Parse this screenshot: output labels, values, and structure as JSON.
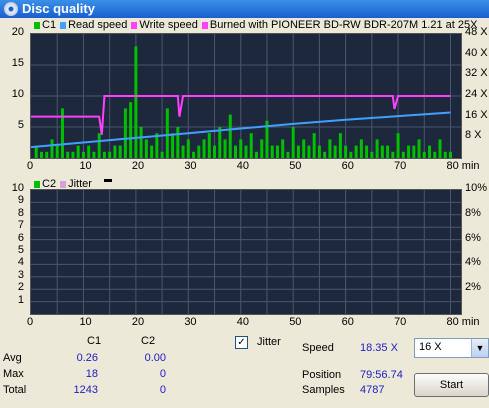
{
  "window": {
    "title": "Disc quality"
  },
  "top_legend": {
    "c1": "C1",
    "read": "Read speed",
    "write": "Write speed",
    "burned": "Burned with PIONEER BD-RW   BDR-207M 1.21 at 25X"
  },
  "top_chart": {
    "y_ticks": [
      "20",
      "15",
      "10",
      "5"
    ],
    "y2_ticks": [
      "48 X",
      "40 X",
      "32 X",
      "24 X",
      "16 X",
      "8 X"
    ],
    "x_ticks": [
      "0",
      "10",
      "20",
      "30",
      "40",
      "50",
      "60",
      "70",
      "80 min"
    ]
  },
  "bottom_legend": {
    "c2": "C2",
    "jitter": "Jitter"
  },
  "bottom_chart": {
    "y_ticks": [
      "10",
      "9",
      "8",
      "7",
      "6",
      "5",
      "4",
      "3",
      "2",
      "1"
    ],
    "y2_ticks": [
      "10%",
      "8%",
      "6%",
      "4%",
      "2%"
    ],
    "x_ticks": [
      "0",
      "10",
      "20",
      "30",
      "40",
      "50",
      "60",
      "70",
      "80 min"
    ]
  },
  "stats": {
    "headers": {
      "c1": "C1",
      "c2": "C2"
    },
    "rows": [
      {
        "label": "Avg",
        "c1": "0.26",
        "c2": "0.00"
      },
      {
        "label": "Max",
        "c1": "18",
        "c2": "0"
      },
      {
        "label": "Total",
        "c1": "1243",
        "c2": "0"
      }
    ]
  },
  "jitter": {
    "label": "Jitter",
    "checked": true,
    "mark": "✓"
  },
  "info": {
    "speed_label": "Speed",
    "speed_value": "18.35 X",
    "position_label": "Position",
    "position_value": "79:56.74",
    "samples_label": "Samples",
    "samples_value": "4787"
  },
  "speed_select": {
    "value": "16 X",
    "arrow": "▼"
  },
  "start_button": {
    "label": "Start"
  },
  "colors": {
    "c1": "#00c000",
    "read": "#40a0ff",
    "write": "#ff40ff",
    "jitter": "#d8a0d8",
    "plot_bg": "#1e283c"
  },
  "chart_data": [
    {
      "type": "bar",
      "title": "",
      "xlabel": "min",
      "ylabel": "",
      "xlim": [
        0,
        82
      ],
      "ylim": [
        0,
        20
      ],
      "y2lim": [
        0,
        48
      ],
      "series": [
        {
          "name": "C1",
          "kind": "bar",
          "x": [
            1,
            2,
            3,
            4,
            5,
            6,
            7,
            8,
            9,
            10,
            11,
            12,
            13,
            14,
            15,
            16,
            17,
            18,
            19,
            20,
            21,
            22,
            23,
            24,
            25,
            26,
            27,
            28,
            29,
            30,
            31,
            32,
            33,
            34,
            35,
            36,
            37,
            38,
            39,
            40,
            41,
            42,
            43,
            44,
            45,
            46,
            47,
            48,
            49,
            50,
            51,
            52,
            53,
            54,
            55,
            56,
            57,
            58,
            59,
            60,
            61,
            62,
            63,
            64,
            65,
            66,
            67,
            68,
            69,
            70,
            71,
            72,
            73,
            74,
            75,
            76,
            77,
            78,
            79,
            80
          ],
          "values": [
            2,
            1,
            1,
            3,
            2,
            8,
            1,
            1,
            2,
            1,
            2,
            1,
            4,
            1,
            1,
            2,
            2,
            8,
            9,
            18,
            5,
            3,
            2,
            4,
            1,
            8,
            4,
            5,
            2,
            3,
            1,
            2,
            3,
            4,
            2,
            5,
            3,
            7,
            2,
            3,
            2,
            4,
            1,
            3,
            6,
            2,
            2,
            3,
            1,
            5,
            2,
            3,
            2,
            4,
            2,
            1,
            3,
            2,
            4,
            2,
            1,
            2,
            3,
            2,
            1,
            3,
            2,
            2,
            1,
            4,
            1,
            2,
            2,
            3,
            1,
            2,
            1,
            3,
            1,
            1
          ]
        },
        {
          "name": "Read speed",
          "kind": "line",
          "axis": "right",
          "x": [
            0,
            10,
            20,
            30,
            40,
            50,
            60,
            70,
            80
          ],
          "values": [
            4.2,
            6,
            7.8,
            9.6,
            11.4,
            13.2,
            14.8,
            16.2,
            17.6
          ]
        },
        {
          "name": "Write speed",
          "kind": "line",
          "axis": "right",
          "x": [
            0,
            13,
            13.5,
            14,
            28,
            28.3,
            29,
            69,
            69.3,
            70,
            80
          ],
          "values": [
            16,
            16,
            9,
            24,
            24,
            16,
            24,
            24,
            19,
            24,
            24
          ]
        }
      ]
    },
    {
      "type": "bar",
      "title": "",
      "xlabel": "min",
      "ylabel": "",
      "xlim": [
        0,
        82
      ],
      "ylim": [
        0,
        10
      ],
      "y2lim": [
        0,
        10
      ],
      "series": [
        {
          "name": "C2",
          "kind": "bar",
          "x": [],
          "values": []
        },
        {
          "name": "Jitter",
          "kind": "line",
          "axis": "right",
          "x": [],
          "values": []
        }
      ]
    }
  ]
}
